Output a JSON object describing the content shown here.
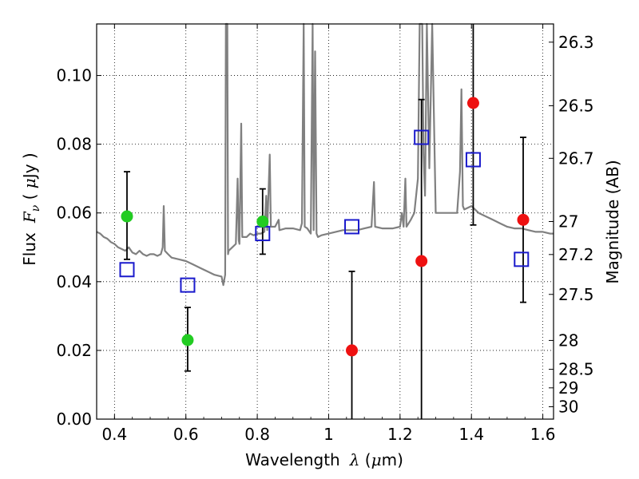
{
  "chart_data": {
    "type": "scatter",
    "xlabel_parts": {
      "text": "Wavelength",
      "symbol": "λ",
      "unit_open": " (",
      "unit_mu": "μ",
      "unit_rest": "m)"
    },
    "ylabel_parts": {
      "text": "Flux",
      "symbol": "F",
      "subscript": "ν",
      "unit_open": " ( ",
      "unit_mu": "μ",
      "unit_rest": "Jy )"
    },
    "y2label": "Magnitude (AB)",
    "xlim": [
      0.35,
      1.63
    ],
    "ylim": [
      0.0,
      0.115
    ],
    "x_ticks": [
      0.4,
      0.6,
      0.8,
      1.0,
      1.2,
      1.4,
      1.6
    ],
    "x_tick_labels": [
      "0.4",
      "0.6",
      "0.8",
      "1",
      "1.2",
      "1.4",
      "1.6"
    ],
    "y_ticks": [
      0.0,
      0.02,
      0.04,
      0.06,
      0.08,
      0.1
    ],
    "y_tick_labels": [
      "0.00",
      "0.02",
      "0.04",
      "0.06",
      "0.08",
      "0.10"
    ],
    "mag_ticks": [
      {
        "label": "26.3",
        "flux": 0.1097
      },
      {
        "label": "26.5",
        "flux": 0.0912
      },
      {
        "label": "26.7",
        "flux": 0.0759
      },
      {
        "label": "27",
        "flux": 0.0575
      },
      {
        "label": "27.2",
        "flux": 0.0479
      },
      {
        "label": "27.5",
        "flux": 0.0363
      },
      {
        "label": "28",
        "flux": 0.0229
      },
      {
        "label": "28.5",
        "flux": 0.0145
      },
      {
        "label": "29",
        "flux": 0.0091
      },
      {
        "label": "30",
        "flux": 0.0036
      }
    ],
    "grid": true,
    "series": [
      {
        "color": "#808080",
        "kind": "spectrum",
        "points": [
          [
            0.35,
            0.0545
          ],
          [
            0.36,
            0.054
          ],
          [
            0.37,
            0.053
          ],
          [
            0.38,
            0.0525
          ],
          [
            0.39,
            0.0515
          ],
          [
            0.4,
            0.051
          ],
          [
            0.41,
            0.05
          ],
          [
            0.42,
            0.0495
          ],
          [
            0.43,
            0.049
          ],
          [
            0.44,
            0.05
          ],
          [
            0.45,
            0.0485
          ],
          [
            0.46,
            0.048
          ],
          [
            0.47,
            0.049
          ],
          [
            0.48,
            0.048
          ],
          [
            0.49,
            0.0475
          ],
          [
            0.5,
            0.048
          ],
          [
            0.51,
            0.048
          ],
          [
            0.52,
            0.0475
          ],
          [
            0.53,
            0.048
          ],
          [
            0.535,
            0.05
          ],
          [
            0.538,
            0.062
          ],
          [
            0.541,
            0.049
          ],
          [
            0.55,
            0.048
          ],
          [
            0.56,
            0.047
          ],
          [
            0.58,
            0.0465
          ],
          [
            0.6,
            0.046
          ],
          [
            0.62,
            0.045
          ],
          [
            0.64,
            0.044
          ],
          [
            0.66,
            0.043
          ],
          [
            0.68,
            0.042
          ],
          [
            0.7,
            0.0415
          ],
          [
            0.705,
            0.039
          ],
          [
            0.71,
            0.042
          ],
          [
            0.712,
            0.115
          ],
          [
            0.716,
            0.115
          ],
          [
            0.718,
            0.048
          ],
          [
            0.72,
            0.049
          ],
          [
            0.73,
            0.05
          ],
          [
            0.74,
            0.051
          ],
          [
            0.745,
            0.07
          ],
          [
            0.748,
            0.052
          ],
          [
            0.75,
            0.051
          ],
          [
            0.755,
            0.086
          ],
          [
            0.758,
            0.053
          ],
          [
            0.77,
            0.053
          ],
          [
            0.78,
            0.054
          ],
          [
            0.79,
            0.0535
          ],
          [
            0.8,
            0.054
          ],
          [
            0.81,
            0.054
          ],
          [
            0.82,
            0.0545
          ],
          [
            0.825,
            0.065
          ],
          [
            0.828,
            0.055
          ],
          [
            0.835,
            0.077
          ],
          [
            0.838,
            0.056
          ],
          [
            0.85,
            0.056
          ],
          [
            0.86,
            0.058
          ],
          [
            0.862,
            0.055
          ],
          [
            0.88,
            0.0555
          ],
          [
            0.9,
            0.0555
          ],
          [
            0.92,
            0.055
          ],
          [
            0.925,
            0.057
          ],
          [
            0.93,
            0.115
          ],
          [
            0.933,
            0.056
          ],
          [
            0.94,
            0.0555
          ],
          [
            0.95,
            0.054
          ],
          [
            0.955,
            0.115
          ],
          [
            0.958,
            0.055
          ],
          [
            0.962,
            0.107
          ],
          [
            0.966,
            0.054
          ],
          [
            0.97,
            0.053
          ],
          [
            0.98,
            0.0535
          ],
          [
            1.0,
            0.054
          ],
          [
            1.02,
            0.0545
          ],
          [
            1.04,
            0.055
          ],
          [
            1.06,
            0.055
          ],
          [
            1.08,
            0.055
          ],
          [
            1.1,
            0.0555
          ],
          [
            1.12,
            0.056
          ],
          [
            1.127,
            0.069
          ],
          [
            1.13,
            0.056
          ],
          [
            1.15,
            0.0555
          ],
          [
            1.18,
            0.0555
          ],
          [
            1.2,
            0.056
          ],
          [
            1.205,
            0.06
          ],
          [
            1.21,
            0.056
          ],
          [
            1.215,
            0.07
          ],
          [
            1.218,
            0.056
          ],
          [
            1.23,
            0.058
          ],
          [
            1.24,
            0.06
          ],
          [
            1.25,
            0.07
          ],
          [
            1.255,
            0.115
          ],
          [
            1.262,
            0.115
          ],
          [
            1.266,
            0.077
          ],
          [
            1.27,
            0.065
          ],
          [
            1.275,
            0.115
          ],
          [
            1.282,
            0.073
          ],
          [
            1.29,
            0.115
          ],
          [
            1.3,
            0.06
          ],
          [
            1.31,
            0.06
          ],
          [
            1.32,
            0.06
          ],
          [
            1.34,
            0.06
          ],
          [
            1.36,
            0.06
          ],
          [
            1.368,
            0.072
          ],
          [
            1.372,
            0.096
          ],
          [
            1.376,
            0.062
          ],
          [
            1.38,
            0.061
          ],
          [
            1.4,
            0.062
          ],
          [
            1.42,
            0.06
          ],
          [
            1.44,
            0.059
          ],
          [
            1.46,
            0.058
          ],
          [
            1.48,
            0.057
          ],
          [
            1.5,
            0.056
          ],
          [
            1.52,
            0.0555
          ],
          [
            1.54,
            0.0555
          ],
          [
            1.56,
            0.055
          ],
          [
            1.58,
            0.0545
          ],
          [
            1.6,
            0.0545
          ],
          [
            1.62,
            0.054
          ],
          [
            1.63,
            0.054
          ]
        ]
      },
      {
        "color": "#1a1acc",
        "kind": "model-squares",
        "points": [
          [
            0.435,
            0.0435
          ],
          [
            0.605,
            0.039
          ],
          [
            0.815,
            0.054
          ],
          [
            1.065,
            0.056
          ],
          [
            1.26,
            0.082
          ],
          [
            1.405,
            0.0755
          ],
          [
            1.54,
            0.0465
          ]
        ]
      },
      {
        "color": "#22cc22",
        "kind": "observed-detections",
        "points": [
          {
            "x": 0.435,
            "y": 0.059,
            "yerr": [
              0.0465,
              0.072
            ]
          },
          {
            "x": 0.605,
            "y": 0.023,
            "yerr": [
              0.014,
              0.0325
            ]
          },
          {
            "x": 0.815,
            "y": 0.0575,
            "yerr": [
              0.048,
              0.067
            ]
          }
        ]
      },
      {
        "color": "#ee1111",
        "kind": "observed-nondetections",
        "points": [
          {
            "x": 1.065,
            "y": 0.02,
            "yerr": [
              0.0,
              0.043
            ]
          },
          {
            "x": 1.26,
            "y": 0.046,
            "yerr": [
              0.0,
              0.093
            ]
          },
          {
            "x": 1.405,
            "y": 0.092,
            "yerr": [
              0.0565,
              0.115
            ]
          },
          {
            "x": 1.545,
            "y": 0.058,
            "yerr": [
              0.034,
              0.082
            ]
          }
        ]
      }
    ]
  }
}
